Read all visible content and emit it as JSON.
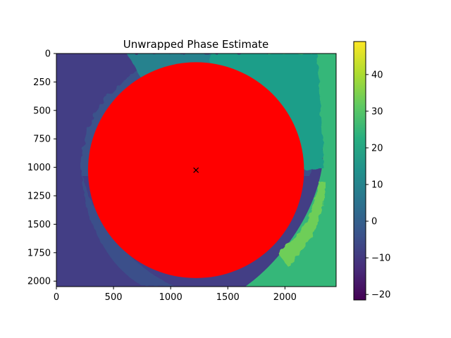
{
  "chart_data": {
    "type": "heatmap",
    "title": "Unwrapped Phase Estimate",
    "xlabel": "",
    "ylabel": "",
    "xlim": [
      0,
      2448
    ],
    "ylim": [
      2048,
      0
    ],
    "x_ticks": [
      0,
      500,
      1000,
      1500,
      2000
    ],
    "y_ticks": [
      0,
      250,
      500,
      750,
      1000,
      1250,
      1500,
      1750,
      2000
    ],
    "colormap": "viridis",
    "colorbar": {
      "min": -21.5,
      "max": 49,
      "ticks": [
        -20,
        -10,
        0,
        10,
        20,
        30,
        40
      ]
    },
    "regions": [
      {
        "name": "left background",
        "value": -8,
        "color": "#433e85"
      },
      {
        "name": "upper-left annulus",
        "value": 0,
        "color": "#3b528b"
      },
      {
        "name": "upper-middle annulus",
        "value": 11,
        "color": "#26828e"
      },
      {
        "name": "upper-right annulus",
        "value": 21,
        "color": "#1f9e89"
      },
      {
        "name": "right background",
        "value": 27,
        "color": "#35b779"
      },
      {
        "name": "lower-right bright patch",
        "value": 35,
        "color": "#6ece58"
      }
    ],
    "mask": {
      "shape": "circle",
      "color": "#ff0000",
      "center": [
        1222,
        1025
      ],
      "radius": 945
    },
    "marker": {
      "symbol": "x",
      "x": 1222,
      "y": 1025,
      "color": "#000000"
    },
    "grid": false
  }
}
